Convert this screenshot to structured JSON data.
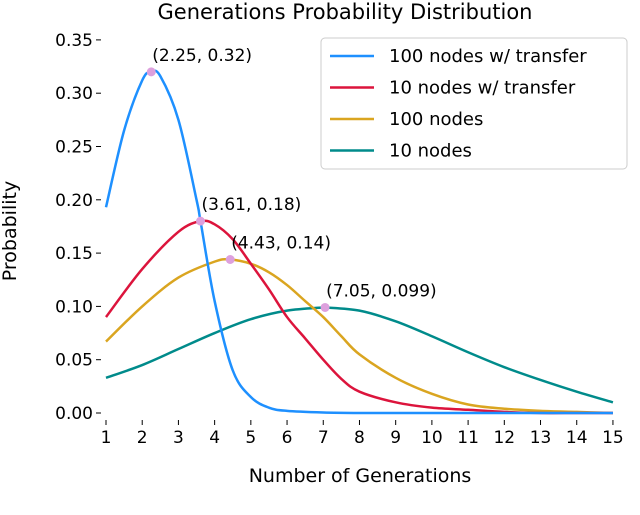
{
  "chart_data": {
    "type": "line",
    "title": "Generations Probability Distribution",
    "xlabel": "Number of Generations",
    "ylabel": "Probability",
    "xlim": [
      0.8,
      15.7
    ],
    "ylim": [
      -0.012,
      0.36
    ],
    "xticks": [
      1,
      2,
      3,
      4,
      5,
      6,
      7,
      8,
      9,
      10,
      11,
      12,
      13,
      14,
      15
    ],
    "xtick_labels": [
      "1",
      "2",
      "3",
      "4",
      "5",
      "6",
      "7",
      "8",
      "9",
      "10",
      "11",
      "12",
      "13",
      "14",
      "15"
    ],
    "yticks": [
      0,
      0.05,
      0.1,
      0.15,
      0.2,
      0.25,
      0.3,
      0.35
    ],
    "ytick_labels": [
      "0.00",
      "0.05",
      "0.10",
      "0.15",
      "0.20",
      "0.25",
      "0.30",
      "0.35"
    ],
    "grid": false,
    "legend_position": "top-right",
    "series": [
      {
        "name": "100 nodes w/ transfer",
        "color": "#1e90ff",
        "x": [
          1,
          1.5,
          2,
          2.25,
          2.5,
          3,
          3.5,
          3.61,
          4,
          4.5,
          5,
          5.5,
          6,
          7,
          8,
          9,
          10,
          11,
          12,
          13,
          14,
          15
        ],
        "y": [
          0.193,
          0.265,
          0.312,
          0.32,
          0.316,
          0.275,
          0.2,
          0.18,
          0.105,
          0.04,
          0.015,
          0.005,
          0.002,
          0.0005,
          0,
          0,
          0,
          0,
          0,
          0,
          0,
          0
        ]
      },
      {
        "name": "10 nodes w/ transfer",
        "color": "#dc143c",
        "x": [
          1,
          2,
          3,
          3.61,
          4,
          4.5,
          5,
          5.5,
          6,
          6.5,
          7,
          7.5,
          8,
          9,
          10,
          11,
          12,
          13,
          14,
          15
        ],
        "y": [
          0.09,
          0.135,
          0.17,
          0.18,
          0.177,
          0.163,
          0.14,
          0.116,
          0.09,
          0.07,
          0.05,
          0.032,
          0.02,
          0.01,
          0.005,
          0.003,
          0.001,
          0,
          0,
          0
        ]
      },
      {
        "name": "100 nodes",
        "color": "#daa520",
        "x": [
          1,
          2,
          3,
          4,
          4.43,
          5,
          5.5,
          6,
          6.5,
          7,
          7.5,
          8,
          9,
          10,
          11,
          12,
          13,
          14,
          15
        ],
        "y": [
          0.067,
          0.1,
          0.127,
          0.142,
          0.144,
          0.14,
          0.132,
          0.12,
          0.105,
          0.09,
          0.072,
          0.055,
          0.033,
          0.018,
          0.008,
          0.004,
          0.002,
          0.001,
          0
        ]
      },
      {
        "name": "10 nodes",
        "color": "#008b8b",
        "x": [
          1,
          2,
          3,
          4,
          5,
          6,
          7,
          7.05,
          8,
          9,
          10,
          11,
          12,
          13,
          14,
          15
        ],
        "y": [
          0.033,
          0.045,
          0.06,
          0.075,
          0.088,
          0.096,
          0.099,
          0.099,
          0.096,
          0.086,
          0.072,
          0.057,
          0.043,
          0.031,
          0.02,
          0.01
        ]
      }
    ],
    "annotations": [
      {
        "x": 2.25,
        "y": 0.32,
        "text": "(2.25, 0.32)"
      },
      {
        "x": 3.61,
        "y": 0.18,
        "text": "(3.61, 0.18)"
      },
      {
        "x": 4.43,
        "y": 0.144,
        "text": "(4.43, 0.14)"
      },
      {
        "x": 7.05,
        "y": 0.099,
        "text": "(7.05, 0.099)"
      }
    ],
    "marker_color": "#dda0dd"
  }
}
